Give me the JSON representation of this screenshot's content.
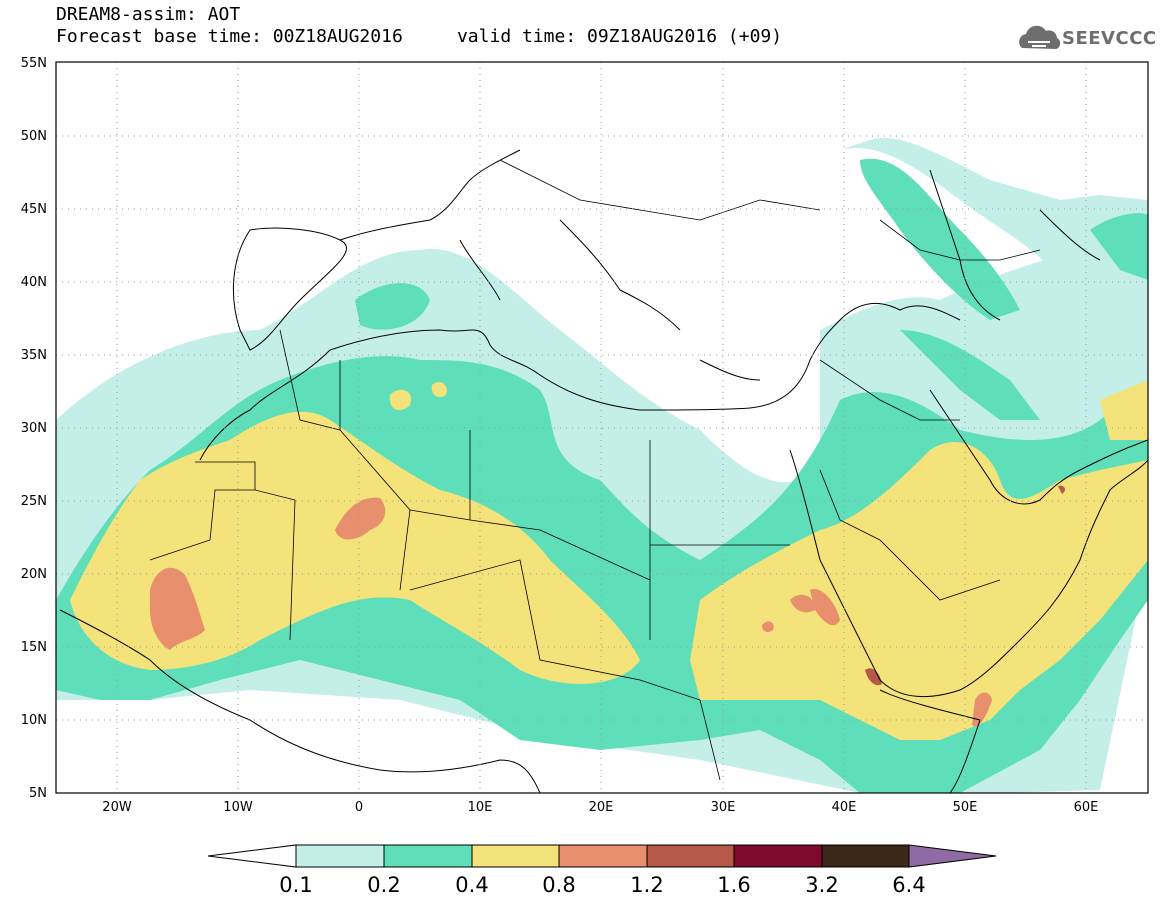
{
  "title": {
    "line1": "DREAM8-assim: AOT",
    "line2": "Forecast base time: 00Z18AUG2016     valid time: 09Z18AUG2016 (+09)"
  },
  "logo": {
    "text": "SEEVCCC",
    "icon": "cloud-logo-icon"
  },
  "map": {
    "lon_range": [
      -25,
      65
    ],
    "lat_range": [
      5,
      55
    ],
    "lat_labels": [
      "55N",
      "50N",
      "45N",
      "40N",
      "35N",
      "30N",
      "25N",
      "20N",
      "15N",
      "10N",
      "5N"
    ],
    "lon_labels": [
      "20W",
      "10W",
      "0",
      "10E",
      "20E",
      "30E",
      "40E",
      "50E",
      "60E"
    ],
    "gridlines": "dotted"
  },
  "colorbar": {
    "labels": [
      "0.1",
      "0.2",
      "0.4",
      "0.8",
      "1.2",
      "1.6",
      "3.2",
      "6.4"
    ],
    "colors": [
      "#c4efe9",
      "#5edfb9",
      "#f4e27a",
      "#e88f6e",
      "#b55a48",
      "#7e0a2d",
      "#3b2818",
      "#8f6aa4"
    ]
  },
  "fill_colors": {
    "light": "#c4efe9",
    "medium": "#5edfb9",
    "yellow": "#f4e27a",
    "orange": "#e88f6e",
    "brown": "#b55a48"
  }
}
